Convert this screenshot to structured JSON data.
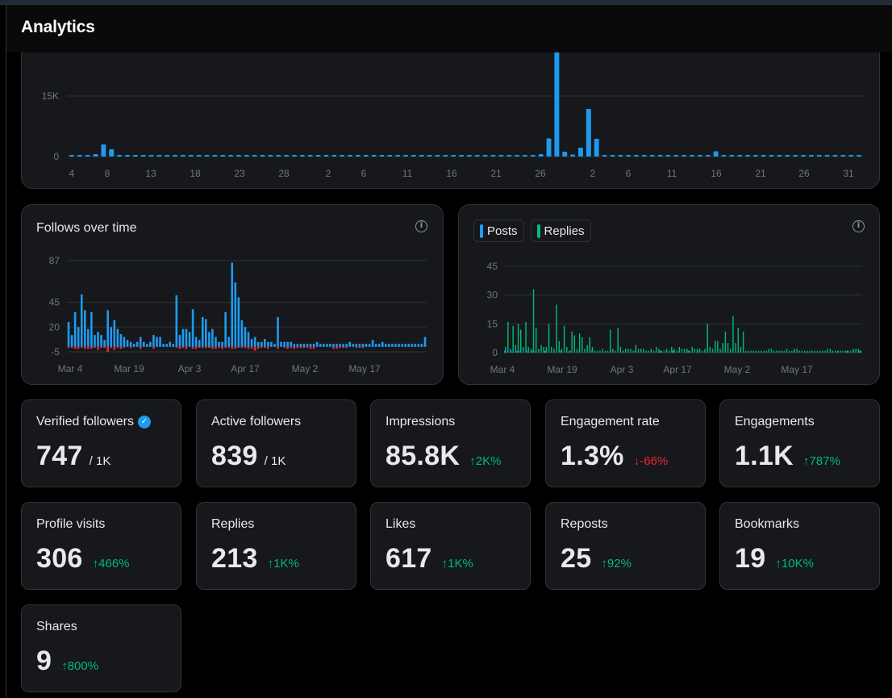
{
  "page": {
    "title": "Analytics"
  },
  "colors": {
    "blue": "#1d9bf0",
    "green": "#00ba7c",
    "red": "#f4212e"
  },
  "impressions_chart": {
    "x_ticks": [
      "4",
      "8",
      "13",
      "18",
      "23",
      "28",
      "2",
      "6",
      "11",
      "16",
      "21",
      "26",
      "2",
      "6",
      "11",
      "16",
      "21",
      "26",
      "31"
    ],
    "chart_data": {
      "type": "bar",
      "y_ticks": [
        "15K",
        "0"
      ],
      "ylim": [
        0,
        27000
      ],
      "values": [
        250,
        300,
        400,
        600,
        3000,
        1800,
        300,
        250,
        300,
        250,
        200,
        150,
        150,
        150,
        200,
        150,
        150,
        200,
        150,
        200,
        150,
        150,
        150,
        150,
        150,
        150,
        150,
        150,
        150,
        150,
        200,
        150,
        150,
        150,
        150,
        150,
        150,
        150,
        150,
        150,
        150,
        150,
        150,
        150,
        150,
        150,
        150,
        150,
        150,
        150,
        150,
        150,
        150,
        200,
        150,
        200,
        300,
        300,
        300,
        600,
        4500,
        26000,
        1200,
        500,
        2200,
        11800,
        4400,
        300,
        150,
        150,
        150,
        150,
        200,
        300,
        300,
        300,
        200,
        200,
        200,
        200,
        200,
        1300,
        150,
        150,
        150,
        150,
        150,
        150,
        150,
        150,
        150,
        150,
        150,
        150,
        150,
        150,
        150,
        150,
        200,
        150
      ]
    }
  },
  "follows_chart": {
    "title": "Follows over time",
    "info_icon": "info-icon",
    "chart_data": {
      "type": "bar",
      "y_ticks": [
        "87",
        "45",
        "20",
        "-5"
      ],
      "x_ticks": [
        "Mar 4",
        "Mar 19",
        "Apr 3",
        "Apr 17",
        "May 2",
        "May 17"
      ],
      "ylim": [
        -5,
        87
      ],
      "series": [
        {
          "name": "",
          "values": [
            25,
            12,
            35,
            20,
            53,
            37,
            18,
            35,
            12,
            15,
            12,
            7,
            37,
            20,
            27,
            18,
            13,
            10,
            7,
            5,
            3,
            5,
            10,
            5,
            3,
            5,
            12,
            10,
            10,
            3,
            3,
            5,
            3,
            52,
            12,
            18,
            18,
            15,
            38,
            10,
            7,
            30,
            28,
            15,
            18,
            10,
            5,
            5,
            35,
            10,
            85,
            65,
            50,
            27,
            20,
            15,
            8,
            10,
            5,
            5,
            8,
            5,
            5,
            3,
            30,
            5,
            5,
            5,
            5,
            3,
            3,
            3,
            3,
            3,
            3,
            3,
            5,
            3,
            3,
            3,
            3,
            3,
            3,
            3,
            3,
            3,
            5,
            3,
            3,
            3,
            3,
            3,
            3,
            7,
            3,
            3,
            5,
            3,
            3,
            3,
            3,
            3,
            3,
            3,
            3,
            3,
            3,
            3,
            3,
            10
          ]
        },
        {
          "name": "",
          "values": [
            -1,
            -1,
            -2,
            -2,
            -1,
            -2,
            -2,
            -2,
            -1,
            -3,
            -1,
            -1,
            -5,
            -1,
            -3,
            -1,
            -2,
            -1,
            0,
            -1,
            0,
            0,
            -2,
            0,
            0,
            0,
            -2,
            0,
            0,
            0,
            0,
            0,
            0,
            -1,
            -2,
            -1,
            -2,
            0,
            -2,
            -2,
            -1,
            -1,
            -1,
            -1,
            -2,
            -2,
            -1,
            -2,
            -1,
            -1,
            -2,
            -2,
            -1,
            -1,
            -1,
            -2,
            -2,
            -4,
            -2,
            -1,
            -1,
            -2,
            0,
            0,
            -2,
            0,
            -1,
            -2,
            -1,
            -2,
            -1,
            -1,
            -1,
            -1,
            -2,
            -2,
            0,
            0,
            0,
            0,
            0,
            -2,
            -2,
            -1,
            -1,
            -1,
            0,
            0,
            -1,
            -1,
            -1,
            0,
            0,
            0,
            0,
            0,
            0,
            0,
            0,
            0,
            0,
            0,
            0,
            0,
            0,
            0,
            0,
            0,
            0,
            0
          ]
        }
      ]
    }
  },
  "posts_chart": {
    "legend": [
      {
        "label": "Posts",
        "color": "#1d9bf0"
      },
      {
        "label": "Replies",
        "color": "#00ba7c"
      }
    ],
    "info_icon": "info-icon",
    "chart_data": {
      "type": "bar",
      "y_ticks": [
        "45",
        "30",
        "15",
        "0"
      ],
      "x_ticks": [
        "Mar 4",
        "Mar 19",
        "Apr 3",
        "Apr 17",
        "May 2",
        "May 17"
      ],
      "ylim": [
        0,
        45
      ],
      "series": [
        {
          "name": "Posts",
          "values": [
            1,
            1,
            1,
            0,
            1,
            1,
            0,
            1,
            0,
            1,
            1,
            0,
            0,
            1,
            0,
            1,
            0,
            0,
            1,
            0,
            0,
            1,
            0,
            0,
            1,
            0,
            0,
            0,
            1,
            0,
            0,
            0,
            0,
            0,
            1,
            0,
            0,
            0,
            1,
            0,
            0,
            0,
            1,
            0,
            0,
            0,
            0,
            1,
            0,
            0,
            1,
            0,
            0,
            0,
            1,
            0,
            0,
            0,
            0,
            1,
            0,
            0,
            1,
            0,
            0,
            0,
            0,
            0,
            0,
            0,
            1,
            0,
            0,
            0,
            0,
            0,
            0,
            0,
            0,
            0,
            0,
            0,
            0,
            0,
            0,
            0,
            0,
            0,
            0,
            1,
            0,
            0,
            0,
            1,
            0,
            0,
            0,
            0,
            0,
            0,
            0,
            0,
            0,
            0,
            0,
            0,
            0,
            1,
            0,
            0,
            1,
            0,
            1,
            0,
            1
          ]
        },
        {
          "name": "Replies",
          "values": [
            3,
            16,
            2,
            14,
            4,
            15,
            12,
            3,
            16,
            3,
            2,
            33,
            13,
            2,
            4,
            3,
            3,
            15,
            3,
            2,
            25,
            6,
            2,
            14,
            3,
            1,
            11,
            9,
            2,
            10,
            8,
            2,
            4,
            8,
            3,
            1,
            1,
            1,
            2,
            1,
            1,
            12,
            2,
            1,
            13,
            3,
            1,
            2,
            2,
            2,
            1,
            4,
            2,
            2,
            2,
            1,
            1,
            2,
            1,
            3,
            2,
            1,
            1,
            2,
            1,
            3,
            2,
            1,
            3,
            2,
            2,
            2,
            1,
            3,
            2,
            2,
            2,
            1,
            2,
            15,
            3,
            2,
            6,
            6,
            2,
            5,
            11,
            5,
            2,
            19,
            5,
            13,
            3,
            11,
            1,
            1,
            1,
            1,
            1,
            1,
            1,
            1,
            1,
            2,
            2,
            1,
            1,
            1,
            1,
            1,
            2,
            1,
            1,
            2,
            2,
            1,
            1,
            1,
            1,
            1,
            1,
            1,
            1,
            1,
            1,
            1,
            2,
            2,
            1,
            1,
            1,
            1,
            1,
            1,
            1,
            1,
            2,
            2,
            2,
            1
          ]
        }
      ]
    }
  },
  "stats": [
    {
      "label": "Verified followers",
      "value": "747",
      "sub": "/ 1K",
      "change": "",
      "dir": "",
      "verified": true
    },
    {
      "label": "Active followers",
      "value": "839",
      "sub": "/ 1K",
      "change": "",
      "dir": ""
    },
    {
      "label": "Impressions",
      "value": "85.8K",
      "sub": "",
      "change": "↑2K%",
      "dir": "up"
    },
    {
      "label": "Engagement rate",
      "value": "1.3%",
      "sub": "",
      "change": "↓-66%",
      "dir": "down"
    },
    {
      "label": "Engagements",
      "value": "1.1K",
      "sub": "",
      "change": "↑787%",
      "dir": "up"
    },
    {
      "label": "Profile visits",
      "value": "306",
      "sub": "",
      "change": "↑466%",
      "dir": "up"
    },
    {
      "label": "Replies",
      "value": "213",
      "sub": "",
      "change": "↑1K%",
      "dir": "up"
    },
    {
      "label": "Likes",
      "value": "617",
      "sub": "",
      "change": "↑1K%",
      "dir": "up"
    },
    {
      "label": "Reposts",
      "value": "25",
      "sub": "",
      "change": "↑92%",
      "dir": "up"
    },
    {
      "label": "Bookmarks",
      "value": "19",
      "sub": "",
      "change": "↑10K%",
      "dir": "up"
    },
    {
      "label": "Shares",
      "value": "9",
      "sub": "",
      "change": "↑800%",
      "dir": "up"
    }
  ]
}
